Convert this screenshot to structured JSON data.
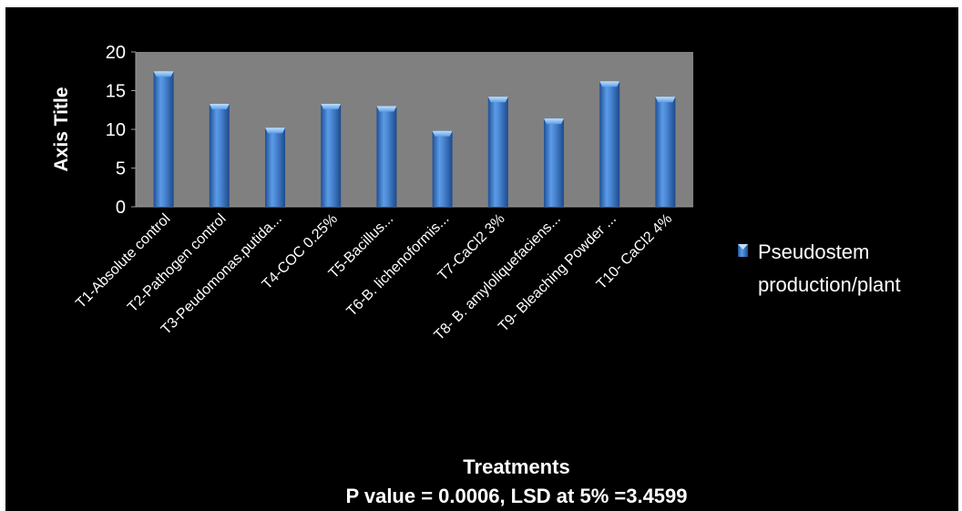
{
  "chart_data": {
    "type": "bar",
    "categories": [
      "T1-Absolute control",
      "T2-Pathogen control",
      "T3-Peudomonas.putida...",
      "T4-COC 0.25%",
      "T5-Bacillus...",
      "T6-B. lichenoformis...",
      "T7-CaCl2 3%",
      "T8- B. amyloliquefaciens...",
      "T9- Bleaching Powder ...",
      "T10- CaCl2 4%"
    ],
    "series": [
      {
        "name": "Pseudostem production/plant",
        "values": [
          17.5,
          13.3,
          10.2,
          13.3,
          13.0,
          9.8,
          14.2,
          11.4,
          16.2,
          14.2
        ]
      }
    ],
    "ylim": [
      0,
      20
    ],
    "yticks": [
      "0",
      "5",
      "10",
      "15",
      "20"
    ],
    "ylabel": "Axis Title",
    "xlabel": "Treatments",
    "footnote": "P value = 0.0006, LSD at 5% =3.4599",
    "legend": {
      "position": "right",
      "lines": [
        "Pseudostem",
        "production/plant"
      ]
    },
    "grid": false,
    "colors": {
      "background": "#000000",
      "plot_area": "#808080",
      "bar": "#4a87d4",
      "bar_dark": "#1f4f96",
      "bar_light": "#8fc3f5",
      "text": "#ffffff"
    }
  }
}
